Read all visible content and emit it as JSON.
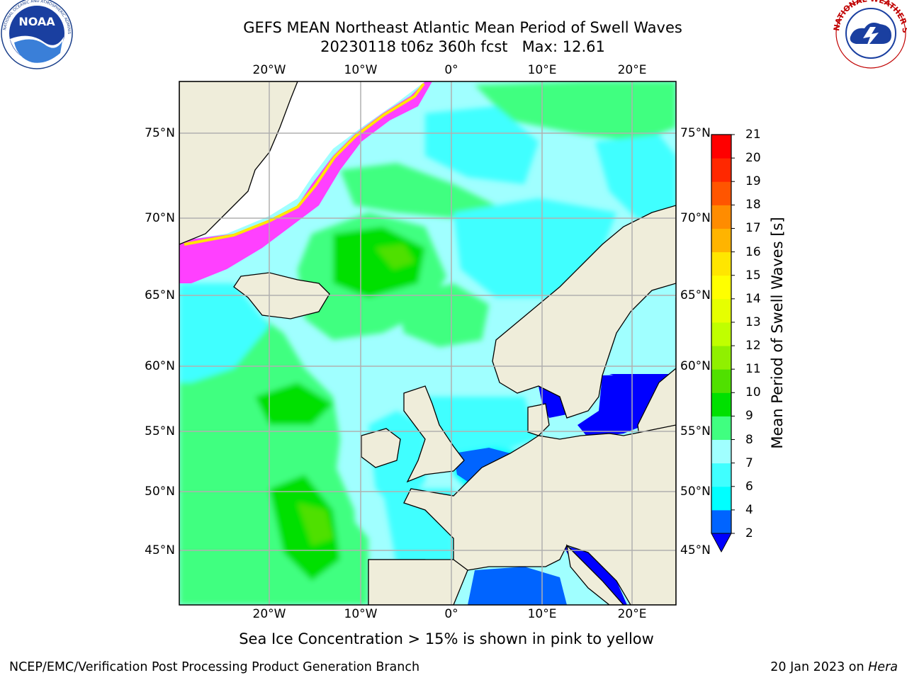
{
  "header": {
    "title_line1": "GEFS MEAN Northeast Atlantic Mean Period of Swell Waves",
    "title_line2": "20230118 t06z 360h fcst   Max: 12.61"
  },
  "logos": {
    "left": {
      "name": "NOAA",
      "text": "NOAA",
      "ring_text": "NATIONAL OCEANIC AND ATMOSPHERIC ADMINISTRATION · U.S. DEPARTMENT OF COMMERCE"
    },
    "right": {
      "name": "National Weather Service",
      "ring_text": "NATIONAL WEATHER SERVICE"
    }
  },
  "map": {
    "lon_labels": [
      "20°W",
      "10°W",
      "0°",
      "10°E",
      "20°E"
    ],
    "lat_labels": [
      "75°N",
      "70°N",
      "65°N",
      "60°N",
      "55°N",
      "50°N",
      "45°N"
    ],
    "grid": true,
    "colors": {
      "land": "#efedda",
      "coast": "#000000",
      "grid": "#b0b0b0",
      "sea_ice": "#ff40ff"
    }
  },
  "colorbar": {
    "title": "Mean Period of Swell Waves [s]",
    "tick_labels": [
      "2",
      "4",
      "6",
      "7",
      "8",
      "9",
      "10",
      "11",
      "12",
      "13",
      "14",
      "15",
      "16",
      "17",
      "18",
      "19",
      "20",
      "21"
    ],
    "colors": [
      "#0064ff",
      "#00ffff",
      "#40ffff",
      "#a0ffff",
      "#40ff80",
      "#00e000",
      "#50e000",
      "#90f000",
      "#c0ff00",
      "#e6ff00",
      "#ffff00",
      "#ffe600",
      "#ffb400",
      "#ff8c00",
      "#ff5500",
      "#ff2800",
      "#ff0000"
    ],
    "underflow_color": "#0000ff",
    "extend": "min"
  },
  "caption": "Sea Ice Concentration > 15% is shown in pink to yellow",
  "footer": {
    "left": "NCEP/EMC/Verification Post Processing Product Generation Branch",
    "right_prefix": "20 Jan 2023 on ",
    "right_host": "Hera"
  }
}
